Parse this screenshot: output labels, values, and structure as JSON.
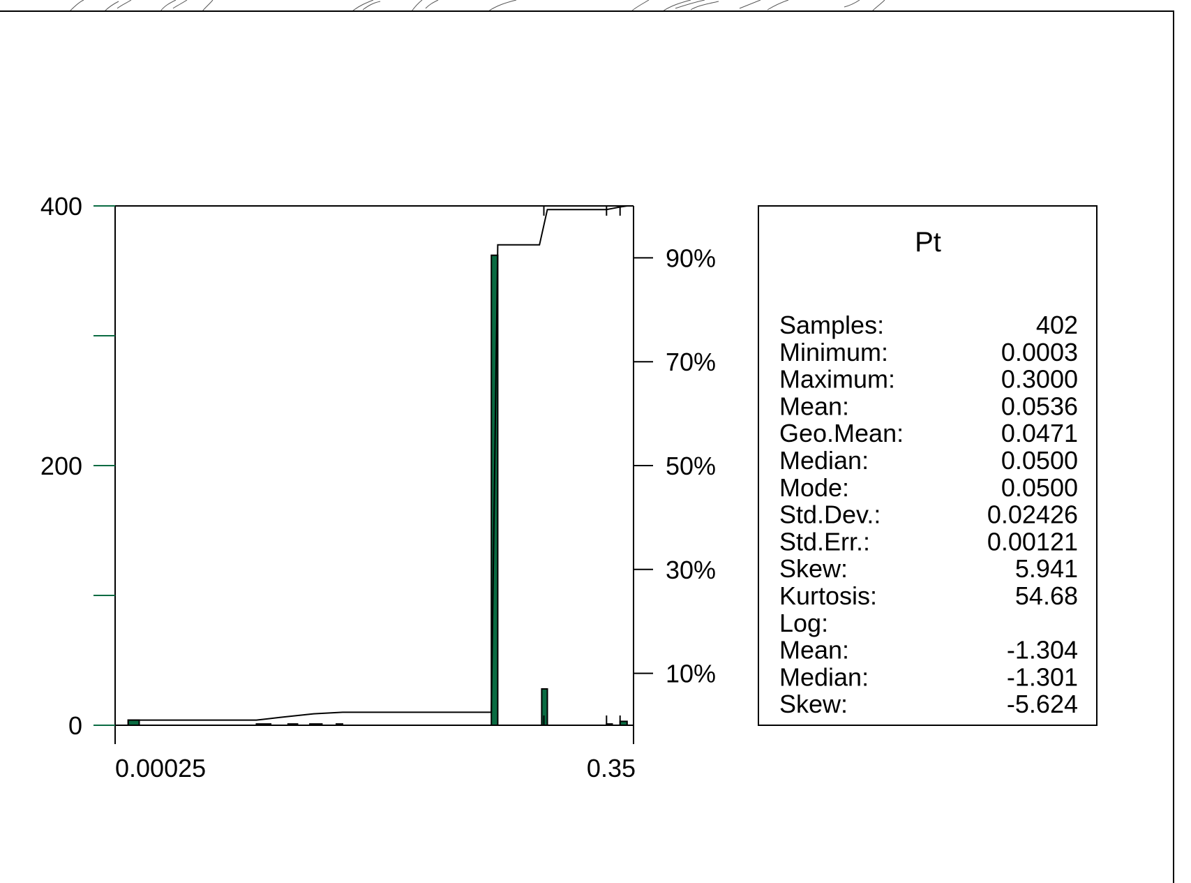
{
  "chart_data": {
    "type": "bar",
    "title": "",
    "x_axis": {
      "scale": "log",
      "range": [
        0.00025,
        0.35
      ],
      "tick_labels": [
        "0.00025",
        "0.35"
      ]
    },
    "y_axis": {
      "range": [
        0,
        400
      ],
      "tick_labels": [
        "0",
        "200",
        "400"
      ],
      "minor_ticks": [
        100,
        300
      ]
    },
    "y2_axis": {
      "range": [
        0,
        100
      ],
      "unit": "%",
      "tick_labels": [
        "10%",
        "30%",
        "50%",
        "70%",
        "90%"
      ],
      "tick_values": [
        10,
        30,
        50,
        70,
        90
      ]
    },
    "bars": [
      {
        "x0": 0.0003,
        "x1": 0.00035,
        "count": 4
      },
      {
        "x0": 0.0018,
        "x1": 0.0022,
        "count": 1
      },
      {
        "x0": 0.0028,
        "x1": 0.0032,
        "count": 1
      },
      {
        "x0": 0.0038,
        "x1": 0.0045,
        "count": 1
      },
      {
        "x0": 0.0055,
        "x1": 0.006,
        "count": 1
      },
      {
        "x0": 0.048,
        "x1": 0.0525,
        "count": 362
      },
      {
        "x0": 0.097,
        "x1": 0.105,
        "count": 28
      },
      {
        "x0": 0.24,
        "x1": 0.26,
        "count": 1
      },
      {
        "x0": 0.29,
        "x1": 0.32,
        "count": 3
      }
    ],
    "cumulative_percent": [
      {
        "x": 0.0003,
        "y": 0
      },
      {
        "x": 0.0003,
        "y": 1
      },
      {
        "x": 0.0018,
        "y": 1
      },
      {
        "x": 0.0025,
        "y": 1.5
      },
      {
        "x": 0.004,
        "y": 2.2
      },
      {
        "x": 0.006,
        "y": 2.5
      },
      {
        "x": 0.048,
        "y": 2.5
      },
      {
        "x": 0.0525,
        "y": 92.5
      },
      {
        "x": 0.094,
        "y": 92.5
      },
      {
        "x": 0.105,
        "y": 99.3
      },
      {
        "x": 0.24,
        "y": 99.3
      },
      {
        "x": 0.26,
        "y": 99.5
      },
      {
        "x": 0.29,
        "y": 99.8
      },
      {
        "x": 0.32,
        "y": 100
      },
      {
        "x": 0.35,
        "y": 100
      }
    ],
    "bar_color": "#0a6b42",
    "grid": false
  },
  "stats": {
    "title": "Pt",
    "rows": [
      {
        "label": "Samples:",
        "value": "402"
      },
      {
        "label": "Minimum:",
        "value": "0.0003"
      },
      {
        "label": "Maximum:",
        "value": "0.3000"
      },
      {
        "label": "Mean:",
        "value": "0.0536"
      },
      {
        "label": "Geo.Mean:",
        "value": "0.0471"
      },
      {
        "label": "Median:",
        "value": "0.0500"
      },
      {
        "label": "Mode:",
        "value": "0.0500"
      },
      {
        "label": "Std.Dev.:",
        "value": "0.02426"
      },
      {
        "label": "Std.Err.:",
        "value": "0.00121"
      },
      {
        "label": "Skew:",
        "value": "5.941"
      },
      {
        "label": "Kurtosis:",
        "value": "54.68"
      },
      {
        "label": "Log:",
        "value": ""
      },
      {
        "label": "Mean:",
        "value": "-1.304"
      },
      {
        "label": "Median:",
        "value": "-1.301"
      },
      {
        "label": "Skew:",
        "value": "-5.624"
      }
    ]
  }
}
